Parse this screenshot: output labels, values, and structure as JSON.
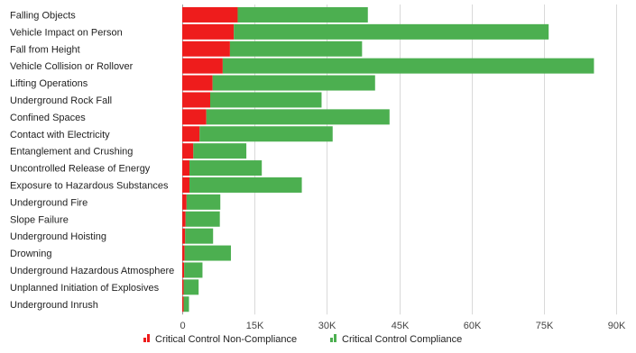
{
  "chart_data": {
    "type": "bar",
    "orientation": "horizontal",
    "stacked": true,
    "categories": [
      "Falling Objects",
      "Vehicle Impact on Person",
      "Fall from Height",
      "Vehicle Collision or Rollover",
      "Lifting Operations",
      "Underground Rock Fall",
      "Confined Spaces",
      "Contact with Electricity",
      "Entanglement and Crushing",
      "Uncontrolled Release of Energy",
      "Exposure to Hazardous Substances",
      "Underground Fire",
      "Slope Failure",
      "Underground Hoisting",
      "Drowning",
      "Underground Hazardous Atmosphere",
      "Unplanned Initiation of Explosives",
      "Underground Inrush"
    ],
    "series": [
      {
        "name": "Critical Control Non-Compliance",
        "color": "#ee1c1c",
        "values": [
          11500,
          10700,
          9900,
          8400,
          6300,
          5800,
          5000,
          3600,
          2300,
          1500,
          1500,
          900,
          700,
          600,
          500,
          400,
          300,
          300
        ]
      },
      {
        "name": "Critical Control Compliance",
        "color": "#4caf50",
        "values": [
          27000,
          65300,
          27400,
          77000,
          33700,
          23100,
          38000,
          27600,
          11000,
          15000,
          23300,
          7000,
          7100,
          5800,
          9600,
          3800,
          3100,
          1100
        ]
      }
    ],
    "xlim": [
      0,
      90000
    ],
    "ticks": [
      "0",
      "15K",
      "30K",
      "45K",
      "60K",
      "75K",
      "90K"
    ],
    "grid": true,
    "legend_position": "bottom"
  }
}
